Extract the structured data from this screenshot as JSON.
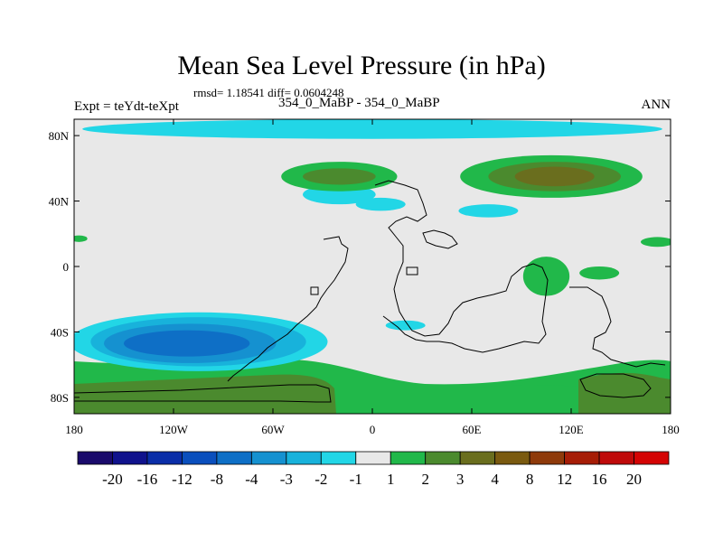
{
  "chart_data": {
    "type": "heatmap",
    "title": "Mean Sea Level Pressure (in hPa)",
    "stats_text": "rmsd= 1.18541 diff= 0.0604248",
    "left_label": "Expt = teYdt-teXpt",
    "center_label": "354_0_MaBP - 354_0_MaBP",
    "right_label": "ANN",
    "x_range": [
      -180,
      180
    ],
    "y_range": [
      -90,
      90
    ],
    "x_ticks": [
      {
        "value": -180,
        "label": "180"
      },
      {
        "value": -120,
        "label": "120W"
      },
      {
        "value": -60,
        "label": "60W"
      },
      {
        "value": 0,
        "label": "0"
      },
      {
        "value": 60,
        "label": "60E"
      },
      {
        "value": 120,
        "label": "120E"
      },
      {
        "value": 180,
        "label": "180"
      }
    ],
    "y_ticks": [
      {
        "value": 80,
        "label": "80N"
      },
      {
        "value": 40,
        "label": "40N"
      },
      {
        "value": 0,
        "label": "0"
      },
      {
        "value": -40,
        "label": "40S"
      },
      {
        "value": -80,
        "label": "80S"
      }
    ],
    "levels": [
      "-20",
      "-16",
      "-12",
      "-8",
      "-4",
      "-3",
      "-2",
      "-1",
      "1",
      "2",
      "3",
      "4",
      "8",
      "12",
      "16",
      "20"
    ],
    "palette": [
      "#1a0a6b",
      "#10128c",
      "#0a2ea8",
      "#0a4fbd",
      "#0e6fc6",
      "#1591d0",
      "#18b2db",
      "#22d6e6",
      "#e8e8e8",
      "#21b84a",
      "#4b8a2e",
      "#6a6e1e",
      "#7a5a10",
      "#8e3a0a",
      "#a61d06",
      "#bf0a0a",
      "#d40404"
    ],
    "features": [
      {
        "name": "arctic-negative-band",
        "category": "-2..-1",
        "lon": 0,
        "lat": 84,
        "rlon": 175,
        "rlat": 6
      },
      {
        "name": "n-atlantic-negative",
        "category": "-2..-1",
        "lon": -20,
        "lat": 44,
        "rlon": 22,
        "rlat": 6
      },
      {
        "name": "n-atlantic-negative-east",
        "category": "-2..-1",
        "lon": 5,
        "lat": 38,
        "rlon": 15,
        "rlat": 4
      },
      {
        "name": "n-pacific-east-negative",
        "category": "-2..-1",
        "lon": 70,
        "lat": 34,
        "rlon": 18,
        "rlat": 4
      },
      {
        "name": "nh-east-positive-1",
        "category": "1..2",
        "lon": 108,
        "lat": 55,
        "rlon": 55,
        "rlat": 13
      },
      {
        "name": "nh-east-positive-2",
        "category": "2..3",
        "lon": 110,
        "lat": 55,
        "rlon": 40,
        "rlat": 9
      },
      {
        "name": "nh-east-positive-3",
        "category": "3..4",
        "lon": 110,
        "lat": 55,
        "rlon": 24,
        "rlat": 6
      },
      {
        "name": "nh-west-positive-1",
        "category": "1..2",
        "lon": -20,
        "lat": 55,
        "rlon": 35,
        "rlat": 9
      },
      {
        "name": "nh-west-positive-2",
        "category": "2..3",
        "lon": -20,
        "lat": 55,
        "rlon": 22,
        "rlat": 5
      },
      {
        "name": "edge-positive-west",
        "category": "1..2",
        "lon": -177,
        "lat": 17,
        "rlon": 5,
        "rlat": 2
      },
      {
        "name": "edge-positive-east",
        "category": "1..2",
        "lon": 172,
        "lat": 15,
        "rlon": 10,
        "rlat": 3
      },
      {
        "name": "equatorial-positive",
        "category": "1..2",
        "lon": 105,
        "lat": -6,
        "rlon": 14,
        "rlat": 12
      },
      {
        "name": "se-pacific-positive",
        "category": "1..2",
        "lon": 137,
        "lat": -4,
        "rlon": 12,
        "rlat": 4
      },
      {
        "name": "south-pacific-negative-1",
        "category": "-2..-1",
        "lon": -105,
        "lat": -46,
        "rlon": 78,
        "rlat": 18
      },
      {
        "name": "south-pacific-negative-2",
        "category": "-3..-2",
        "lon": -105,
        "lat": -46,
        "rlon": 65,
        "rlat": 15
      },
      {
        "name": "south-pacific-negative-3",
        "category": "-4..-3",
        "lon": -110,
        "lat": -47,
        "rlon": 52,
        "rlat": 12
      },
      {
        "name": "south-pacific-negative-4",
        "category": "-8..-4",
        "lon": -112,
        "lat": -47,
        "rlon": 38,
        "rlat": 8
      },
      {
        "name": "south-indian-negative",
        "category": "-2..-1",
        "lon": 20,
        "lat": -36,
        "rlon": 12,
        "rlat": 3
      }
    ]
  }
}
